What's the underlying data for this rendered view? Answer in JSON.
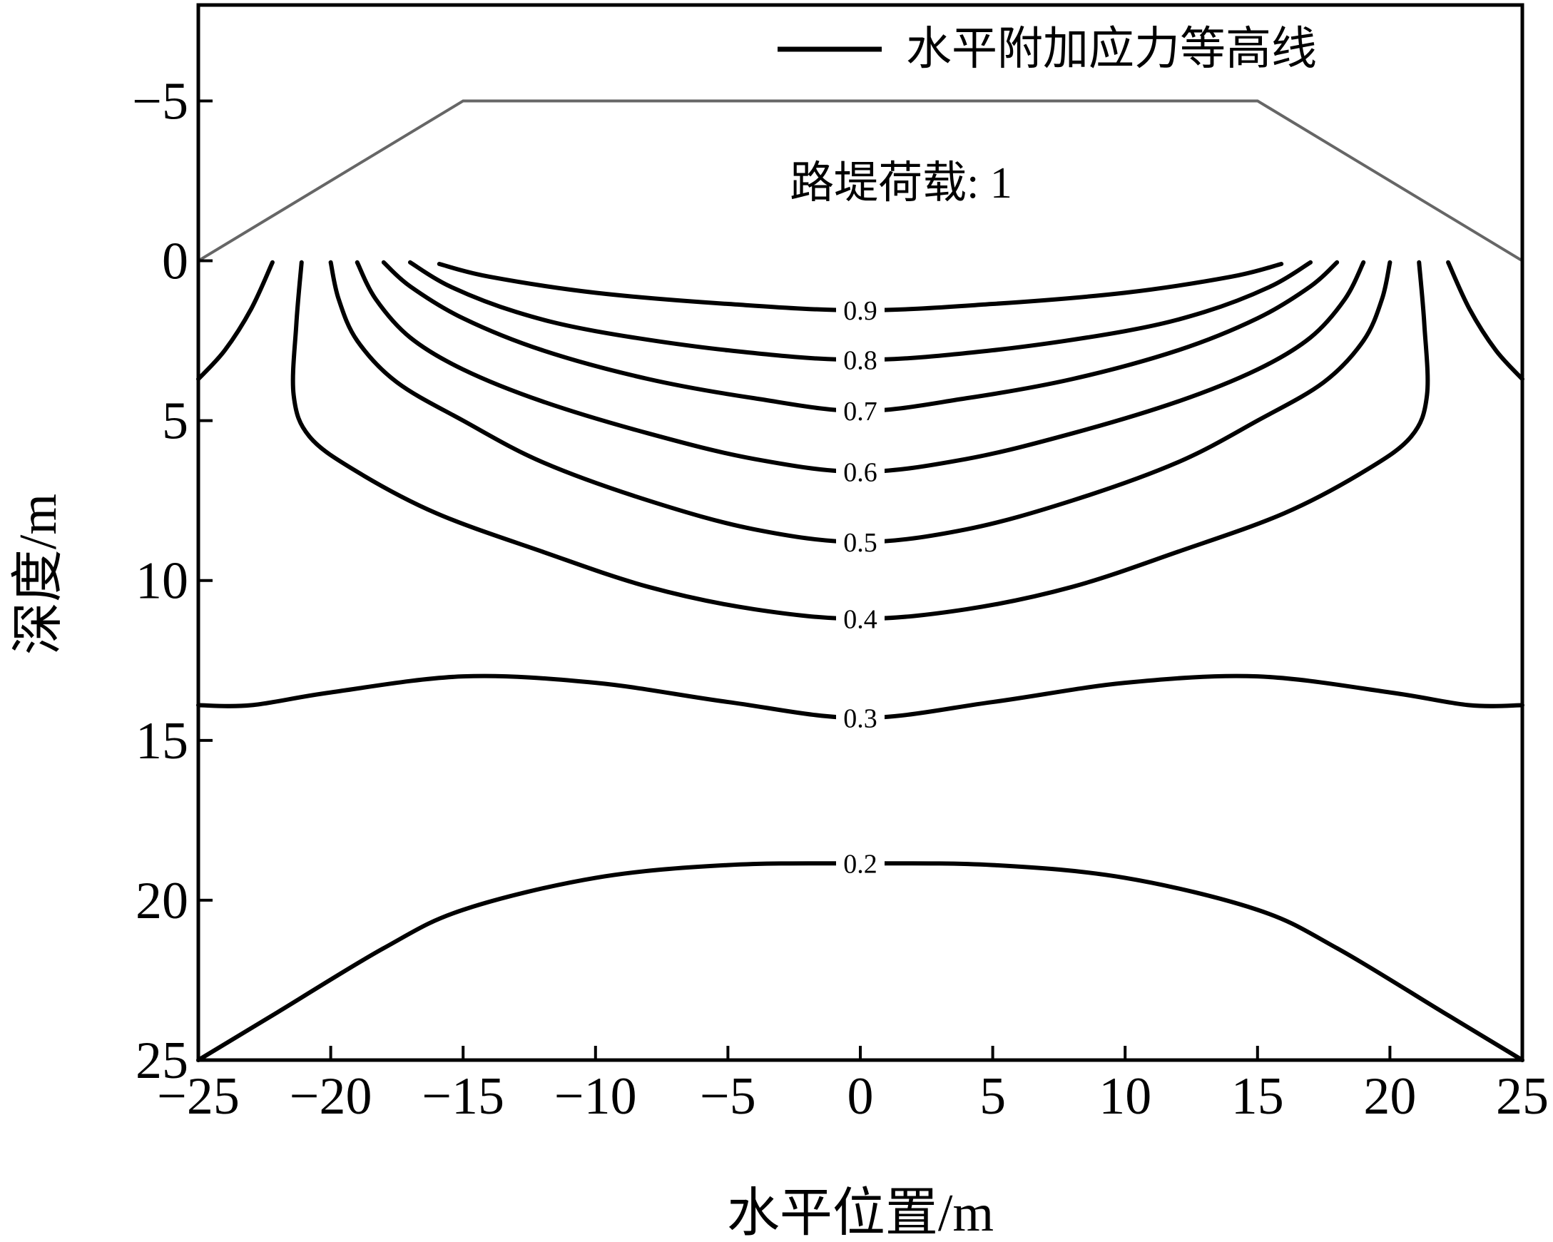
{
  "chart_data": {
    "type": "contour",
    "xlabel": "水平位置/m",
    "ylabel": "深度/m",
    "legend": "水平附加应力等高线",
    "legend_position": "top-right",
    "color": "#000000",
    "xlim": [
      -25,
      25
    ],
    "ylim": [
      -8,
      25
    ],
    "y_inverted": true,
    "xticks": [
      {
        "value": -25,
        "label": "−25"
      },
      {
        "value": -20,
        "label": "−20"
      },
      {
        "value": -15,
        "label": "−15"
      },
      {
        "value": -10,
        "label": "−10"
      },
      {
        "value": -5,
        "label": "−5"
      },
      0,
      5,
      10,
      15,
      20,
      25
    ],
    "yticks": [
      {
        "value": -5,
        "label": "−5"
      },
      0,
      5,
      10,
      15,
      20,
      25
    ],
    "embankment": {
      "x": [
        -25,
        -15,
        15,
        25
      ],
      "y": [
        0,
        -5,
        -5,
        0
      ],
      "label": "路堤荷载: 1",
      "color": "#666666"
    },
    "contours": [
      {
        "level": 0.9,
        "x": [
          -15.9,
          -14,
          -10,
          -5,
          0,
          5,
          10,
          14,
          15.9
        ],
        "y": [
          0.1,
          0.5,
          1.0,
          1.35,
          1.55,
          1.35,
          1.0,
          0.5,
          0.1
        ]
      },
      {
        "level": 0.8,
        "x": [
          -17,
          -15.5,
          -13,
          -10,
          -5,
          0,
          5,
          10,
          13,
          15.5,
          17
        ],
        "y": [
          0.05,
          0.8,
          1.6,
          2.2,
          2.8,
          3.1,
          2.8,
          2.2,
          1.6,
          0.8,
          0.05
        ]
      },
      {
        "level": 0.7,
        "x": [
          -18,
          -17,
          -15,
          -12,
          -8,
          -4,
          0,
          4,
          8,
          12,
          15,
          17,
          18
        ],
        "y": [
          0.05,
          0.8,
          1.8,
          2.8,
          3.7,
          4.3,
          4.7,
          4.3,
          3.7,
          2.8,
          1.8,
          0.8,
          0.05
        ]
      },
      {
        "level": 0.6,
        "x": [
          -19,
          -18.3,
          -17,
          -15,
          -12,
          -8,
          -4,
          0,
          4,
          8,
          12,
          15,
          17,
          18.3,
          19
        ],
        "y": [
          0.05,
          1.2,
          2.4,
          3.4,
          4.4,
          5.4,
          6.2,
          6.6,
          6.2,
          5.4,
          4.4,
          3.4,
          2.4,
          1.2,
          0.05
        ]
      },
      {
        "level": 0.5,
        "x": [
          -20,
          -19.7,
          -19,
          -17.5,
          -15,
          -12,
          -8,
          -4,
          0,
          4,
          8,
          12,
          15,
          17.5,
          19,
          19.7,
          20
        ],
        "y": [
          0.05,
          1.2,
          2.5,
          3.8,
          5.0,
          6.3,
          7.5,
          8.4,
          8.8,
          8.4,
          7.5,
          6.3,
          5.0,
          3.8,
          2.5,
          1.2,
          0.05
        ]
      },
      {
        "level": 0.4,
        "x": [
          -21.1,
          -21.3,
          -21.4,
          -20.8,
          -19,
          -16,
          -12,
          -8,
          -4,
          0,
          4,
          8,
          12,
          16,
          19,
          20.8,
          21.4,
          21.3,
          21.1
        ],
        "y": [
          0.05,
          2,
          4.2,
          5.5,
          6.6,
          7.9,
          9.1,
          10.2,
          10.9,
          11.2,
          10.9,
          10.2,
          9.1,
          7.9,
          6.6,
          5.5,
          4.2,
          2,
          0.05
        ]
      },
      {
        "level": 0.3,
        "x": [
          -25,
          -23,
          -20,
          -15,
          -10,
          -5,
          0,
          5,
          10,
          15,
          20,
          23,
          25
        ],
        "y": [
          13.9,
          13.9,
          13.5,
          13.0,
          13.2,
          13.8,
          14.3,
          13.8,
          13.2,
          13.0,
          13.5,
          13.9,
          13.9
        ]
      },
      {
        "level": 0.2,
        "x": [
          -25,
          -22,
          -18,
          -15,
          -10,
          -5,
          0,
          5,
          10,
          15,
          18,
          22,
          25
        ],
        "y": [
          25,
          23.5,
          21.5,
          20.3,
          19.3,
          18.9,
          18.85,
          18.9,
          19.3,
          20.3,
          21.5,
          23.5,
          25
        ]
      },
      {
        "level": null,
        "x": [
          -22.2,
          -23,
          -24,
          -25
        ],
        "y": [
          0.05,
          1.5,
          2.8,
          3.7
        ]
      },
      {
        "level": null,
        "x": [
          22.2,
          23,
          24,
          25
        ],
        "y": [
          0.05,
          1.5,
          2.8,
          3.7
        ]
      }
    ]
  }
}
